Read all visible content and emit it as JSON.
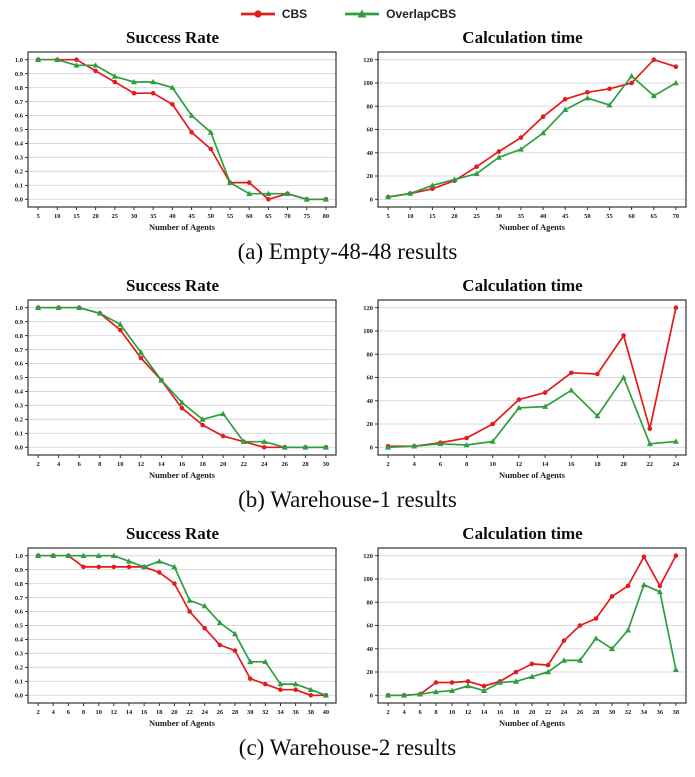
{
  "legend": {
    "items": [
      {
        "label": "CBS",
        "color": "#e41b1d",
        "marker": "circle"
      },
      {
        "label": "OverlapCBS",
        "color": "#2f9e41",
        "marker": "triangle"
      }
    ]
  },
  "colors": {
    "grid": "#d9d9d9",
    "axis": "#333333",
    "plot_bg": "#ffffff"
  },
  "captions": [
    "(a) Empty-48-48 results",
    "(b) Warehouse-1 results",
    "(c) Warehouse-2 results"
  ],
  "chart_data": [
    {
      "type": "line",
      "panel": "Empty-48-48",
      "title": "Success Rate",
      "xlabel": "Number of Agents",
      "grid": "horizontal",
      "x": [
        5,
        10,
        15,
        20,
        25,
        30,
        35,
        40,
        45,
        50,
        55,
        60,
        65,
        70,
        75,
        80
      ],
      "ylim": [
        0,
        1.0
      ],
      "yticks": [
        0,
        0.1,
        0.2,
        0.3,
        0.4,
        0.5,
        0.6,
        0.7,
        0.8,
        0.9,
        1.0
      ],
      "ytick_labels": [
        "0.0",
        "0.1",
        "0.2",
        "0.3",
        "0.4",
        "0.5",
        "0.6",
        "0.7",
        "0.8",
        "0.9",
        "1.0"
      ],
      "series": [
        {
          "name": "CBS",
          "color": "#e41b1d",
          "marker": "circle",
          "values": [
            1.0,
            1.0,
            1.0,
            0.92,
            0.84,
            0.76,
            0.76,
            0.68,
            0.48,
            0.36,
            0.12,
            0.12,
            0.0,
            0.04,
            0.0,
            0.0
          ]
        },
        {
          "name": "OverlapCBS",
          "color": "#2f9e41",
          "marker": "triangle",
          "values": [
            1.0,
            1.0,
            0.96,
            0.96,
            0.88,
            0.84,
            0.84,
            0.8,
            0.6,
            0.48,
            0.12,
            0.04,
            0.04,
            0.04,
            0.0,
            0.0
          ]
        }
      ]
    },
    {
      "type": "line",
      "panel": "Empty-48-48",
      "title": "Calculation time",
      "xlabel": "Number of Agents",
      "grid": "horizontal",
      "x": [
        5,
        10,
        15,
        20,
        25,
        30,
        35,
        40,
        45,
        50,
        55,
        60,
        65,
        70
      ],
      "ylim": [
        0,
        120
      ],
      "yticks": [
        0,
        20,
        40,
        60,
        80,
        100,
        120
      ],
      "ytick_labels": [
        "0",
        "20",
        "40",
        "60",
        "80",
        "100",
        "120"
      ],
      "series": [
        {
          "name": "CBS",
          "color": "#e41b1d",
          "marker": "circle",
          "values": [
            2,
            5,
            9,
            16,
            28,
            41,
            53,
            71,
            86,
            92,
            95,
            100,
            120,
            114
          ]
        },
        {
          "name": "OverlapCBS",
          "color": "#2f9e41",
          "marker": "triangle",
          "values": [
            2,
            5,
            12,
            17,
            22,
            36,
            43,
            57,
            77,
            87,
            81,
            106,
            89,
            100
          ]
        }
      ]
    },
    {
      "type": "line",
      "panel": "Warehouse-1",
      "title": "Success Rate",
      "xlabel": "Number of Agents",
      "grid": "horizontal",
      "x": [
        2,
        4,
        6,
        8,
        10,
        12,
        14,
        16,
        18,
        20,
        22,
        24,
        26,
        28,
        30
      ],
      "ylim": [
        0,
        1.0
      ],
      "yticks": [
        0,
        0.1,
        0.2,
        0.3,
        0.4,
        0.5,
        0.6,
        0.7,
        0.8,
        0.9,
        1.0
      ],
      "ytick_labels": [
        "0.0",
        "0.1",
        "0.2",
        "0.3",
        "0.4",
        "0.5",
        "0.6",
        "0.7",
        "0.8",
        "0.9",
        "1.0"
      ],
      "series": [
        {
          "name": "CBS",
          "color": "#e41b1d",
          "marker": "circle",
          "values": [
            1.0,
            1.0,
            1.0,
            0.96,
            0.84,
            0.64,
            0.48,
            0.28,
            0.16,
            0.08,
            0.04,
            0.0,
            0.0,
            0.0,
            0.0
          ]
        },
        {
          "name": "OverlapCBS",
          "color": "#2f9e41",
          "marker": "triangle",
          "values": [
            1.0,
            1.0,
            1.0,
            0.96,
            0.88,
            0.68,
            0.48,
            0.32,
            0.2,
            0.24,
            0.04,
            0.04,
            0.0,
            0.0,
            0.0
          ]
        }
      ]
    },
    {
      "type": "line",
      "panel": "Warehouse-1",
      "title": "Calculation time",
      "xlabel": "Number of Agents",
      "grid": "horizontal",
      "x": [
        2,
        4,
        6,
        8,
        10,
        12,
        14,
        16,
        18,
        20,
        22,
        24
      ],
      "ylim": [
        0,
        120
      ],
      "yticks": [
        0,
        20,
        40,
        60,
        80,
        100,
        120
      ],
      "ytick_labels": [
        "0",
        "20",
        "40",
        "60",
        "80",
        "100",
        "120"
      ],
      "series": [
        {
          "name": "CBS",
          "color": "#e41b1d",
          "marker": "circle",
          "values": [
            1,
            1,
            4,
            8,
            20,
            41,
            47,
            64,
            63,
            96,
            16,
            120
          ]
        },
        {
          "name": "OverlapCBS",
          "color": "#2f9e41",
          "marker": "triangle",
          "values": [
            0,
            1,
            3,
            2,
            5,
            34,
            35,
            49,
            27,
            60,
            3,
            5
          ]
        }
      ]
    },
    {
      "type": "line",
      "panel": "Warehouse-2",
      "title": "Success Rate",
      "xlabel": "Number of Agents",
      "grid": "horizontal",
      "x": [
        2,
        4,
        6,
        8,
        10,
        12,
        14,
        16,
        18,
        20,
        22,
        24,
        26,
        28,
        30,
        32,
        34,
        36,
        38,
        40
      ],
      "ylim": [
        0,
        1.0
      ],
      "yticks": [
        0,
        0.1,
        0.2,
        0.3,
        0.4,
        0.5,
        0.6,
        0.7,
        0.8,
        0.9,
        1.0
      ],
      "ytick_labels": [
        "0.0",
        "0.1",
        "0.2",
        "0.3",
        "0.4",
        "0.5",
        "0.6",
        "0.7",
        "0.8",
        "0.9",
        "1.0"
      ],
      "series": [
        {
          "name": "CBS",
          "color": "#e41b1d",
          "marker": "circle",
          "values": [
            1.0,
            1.0,
            1.0,
            0.92,
            0.92,
            0.92,
            0.92,
            0.92,
            0.88,
            0.8,
            0.6,
            0.48,
            0.36,
            0.32,
            0.12,
            0.08,
            0.04,
            0.04,
            0.0,
            0.0
          ]
        },
        {
          "name": "OverlapCBS",
          "color": "#2f9e41",
          "marker": "triangle",
          "values": [
            1.0,
            1.0,
            1.0,
            1.0,
            1.0,
            1.0,
            0.96,
            0.92,
            0.96,
            0.92,
            0.68,
            0.64,
            0.52,
            0.44,
            0.24,
            0.24,
            0.08,
            0.08,
            0.04,
            0.0
          ]
        }
      ]
    },
    {
      "type": "line",
      "panel": "Warehouse-2",
      "title": "Calculation time",
      "xlabel": "Number of Agents",
      "grid": "horizontal",
      "x": [
        2,
        4,
        6,
        8,
        10,
        12,
        14,
        16,
        18,
        20,
        22,
        24,
        26,
        28,
        30,
        32,
        34,
        36,
        38
      ],
      "ylim": [
        0,
        120
      ],
      "yticks": [
        0,
        20,
        40,
        60,
        80,
        100,
        120
      ],
      "ytick_labels": [
        "0",
        "20",
        "40",
        "60",
        "80",
        "100",
        "120"
      ],
      "series": [
        {
          "name": "CBS",
          "color": "#e41b1d",
          "marker": "circle",
          "values": [
            0,
            0,
            1,
            11,
            11,
            12,
            8,
            12,
            20,
            27,
            26,
            47,
            60,
            66,
            85,
            94,
            119,
            94,
            120
          ]
        },
        {
          "name": "OverlapCBS",
          "color": "#2f9e41",
          "marker": "triangle",
          "values": [
            0,
            0,
            1,
            3,
            4,
            8,
            4,
            11,
            12,
            16,
            20,
            30,
            30,
            49,
            40,
            56,
            95,
            89,
            22
          ]
        }
      ]
    }
  ]
}
